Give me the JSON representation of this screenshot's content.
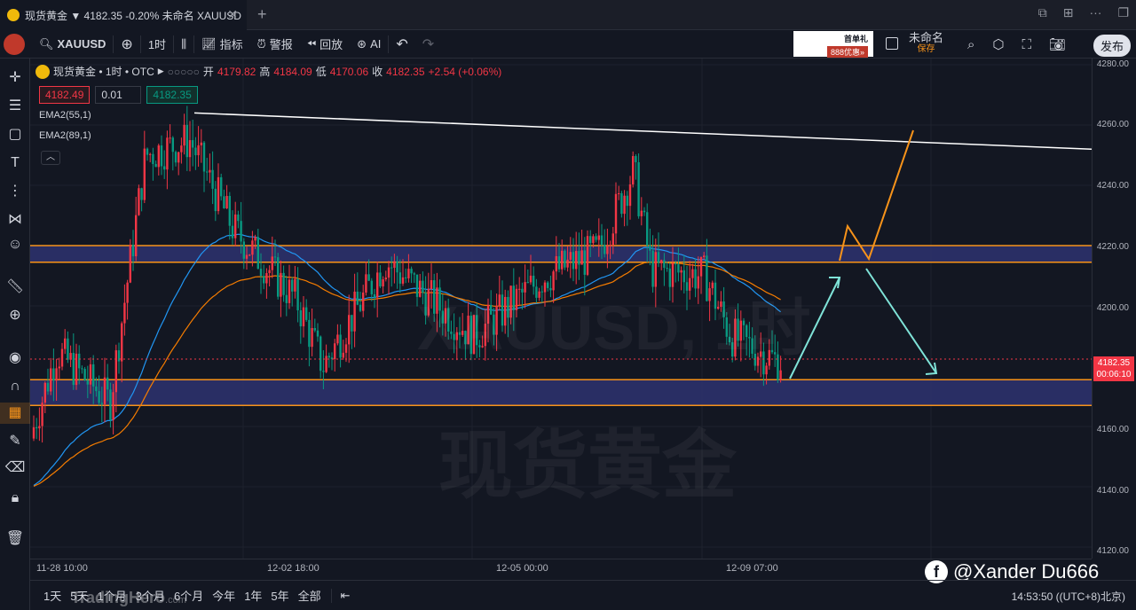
{
  "browser": {
    "tab_title": "现货黄金 ▼ 4182.35 -0.20% 未命名 XAUUSD",
    "close": "✕",
    "new_tab": "+"
  },
  "toolbar": {
    "symbol": "XAUUSD",
    "add": "⊕",
    "interval": "1时",
    "indicators": "指标",
    "alerts": "警报",
    "replay": "回放",
    "ai": "AI",
    "undo": "↶",
    "redo": "↷",
    "ad_title": "首单礼",
    "ad_sub": "888优惠»",
    "layout_name": "未命名",
    "layout_save": "保存",
    "publish": "发布"
  },
  "legend": {
    "name": "现货黄金 • 1时 • OTC",
    "open_label": "开",
    "open": "4179.82",
    "high_label": "高",
    "high": "4184.09",
    "low_label": "低",
    "low": "4170.06",
    "close_label": "收",
    "close": "4182.35",
    "change": "+2.54 (+0.06%)"
  },
  "order": {
    "sell": "4182.49",
    "qty": "0.01",
    "buy": "4182.35"
  },
  "indicators": [
    "EMA2(55,1)",
    "EMA2(89,1)"
  ],
  "price_axis": {
    "labels": [
      "4280.00",
      "4260.00",
      "4240.00",
      "4220.00",
      "4200.00",
      "4160.00",
      "4140.00",
      "4120.00"
    ],
    "current_price": "4182.35",
    "countdown": "00:06:10"
  },
  "time_axis": [
    "11-28 10:00",
    "12-02 18:00",
    "12-05 00:00",
    "12-09 07:00"
  ],
  "ranges": [
    "1天",
    "5天",
    "1个月",
    "3个月",
    "6个月",
    "今年",
    "1年",
    "5年",
    "全部"
  ],
  "clock": "14:53:50 ((UTC+8)北京)",
  "watermark": {
    "line1": "XAUUSD, 1时",
    "line2": "现货黄金"
  },
  "brand": "TradingHero",
  "brand_suffix": ".com",
  "social": "@Xander Du666",
  "colors": {
    "background": "#131722",
    "up": "#f23645",
    "down": "#089981",
    "zone_border": "#f7931a",
    "zone_fill": "#2e3270",
    "ema55": "#2196f3",
    "ema89": "#f57c00"
  },
  "chart_data": {
    "type": "candlestick",
    "ylim": [
      4120,
      4280
    ],
    "zones": [
      {
        "from": 4214.5,
        "to": 4220.0
      },
      {
        "from": 4167.0,
        "to": 4175.5
      }
    ],
    "trendline": {
      "from": 4264.0,
      "to": 4252.0
    }
  }
}
